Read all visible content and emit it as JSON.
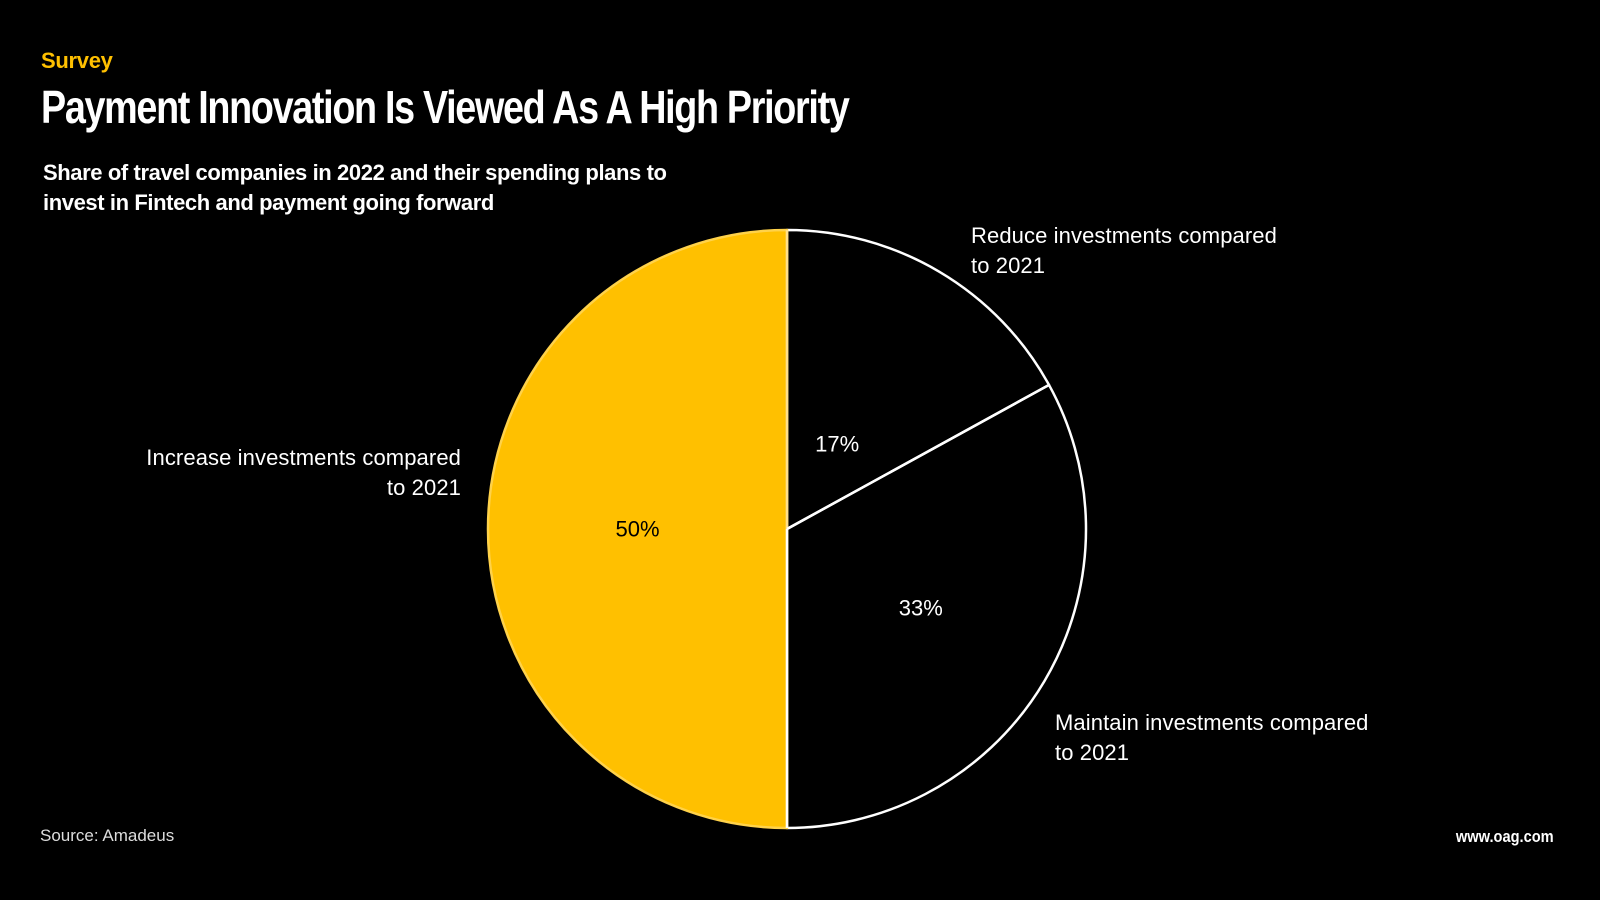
{
  "header": {
    "kicker": "Survey",
    "title": "Payment Innovation Is Viewed As A High Priority",
    "subtitle": "Share of travel companies in 2022 and their spending plans to invest in Fintech and payment going forward"
  },
  "chart_data": {
    "type": "pie",
    "title": "Payment Innovation Is Viewed As A High Priority",
    "subtitle": "Share of travel companies in 2022 and their spending plans to invest in Fintech and payment going forward",
    "start": "12 o'clock, clockwise",
    "slices": [
      {
        "label": "Reduce investments compared to 2021",
        "line1": "Reduce investments compared",
        "line2": "to 2021",
        "value": 17,
        "display": "17%",
        "color": "#000000",
        "text_color": "#ffffff"
      },
      {
        "label": "Maintain investments compared to 2021",
        "line1": "Maintain investments compared",
        "line2": "to 2021",
        "value": 33,
        "display": "33%",
        "color": "#000000",
        "text_color": "#ffffff"
      },
      {
        "label": "Increase investments compared to 2021",
        "line1": "Increase investments compared",
        "line2": "to 2021",
        "value": 50,
        "display": "50%",
        "color": "#FFC000",
        "text_color": "#000000"
      }
    ],
    "stroke_color": "#ffffff",
    "legend": "none (direct labels)"
  },
  "footer": {
    "source": "Source: Amadeus",
    "url": "www.oag.com"
  },
  "colors": {
    "background": "#000000",
    "accent": "#FFC000",
    "text": "#ffffff"
  }
}
